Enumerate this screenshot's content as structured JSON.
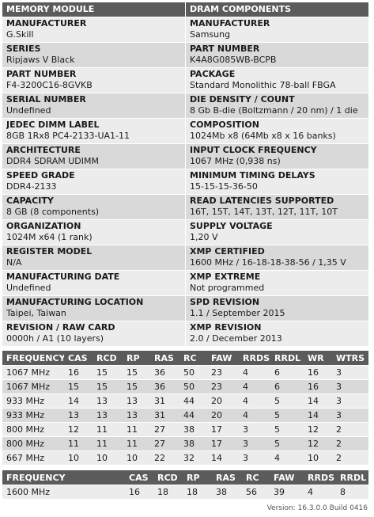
{
  "left_header": "MEMORY MODULE",
  "right_header": "DRAM COMPONENTS",
  "left": [
    {
      "label": "MANUFACTURER",
      "value": "G.Skill"
    },
    {
      "label": "SERIES",
      "value": "Ripjaws V Black"
    },
    {
      "label": "PART NUMBER",
      "value": "F4-3200C16-8GVKB"
    },
    {
      "label": "SERIAL NUMBER",
      "value": "Undefined"
    },
    {
      "label": "JEDEC DIMM LABEL",
      "value": "8GB 1Rx8 PC4-2133-UA1-11"
    },
    {
      "label": "ARCHITECTURE",
      "value": "DDR4 SDRAM UDIMM"
    },
    {
      "label": "SPEED GRADE",
      "value": "DDR4-2133"
    },
    {
      "label": "CAPACITY",
      "value": "8 GB (8 components)"
    },
    {
      "label": "ORGANIZATION",
      "value": "1024M x64 (1 rank)"
    },
    {
      "label": "REGISTER MODEL",
      "value": "N/A"
    },
    {
      "label": "MANUFACTURING DATE",
      "value": "Undefined"
    },
    {
      "label": "MANUFACTURING LOCATION",
      "value": "Taipei, Taiwan"
    },
    {
      "label": "REVISION / RAW CARD",
      "value": "0000h / A1 (10 layers)"
    }
  ],
  "right": [
    {
      "label": "MANUFACTURER",
      "value": "Samsung"
    },
    {
      "label": "PART NUMBER",
      "value": "K4A8G085WB-BCPB"
    },
    {
      "label": "PACKAGE",
      "value": "Standard Monolithic 78-ball FBGA"
    },
    {
      "label": "DIE DENSITY / COUNT",
      "value": "8 Gb B-die (Boltzmann / 20 nm) / 1 die"
    },
    {
      "label": "COMPOSITION",
      "value": "1024Mb x8 (64Mb x8 x 16 banks)"
    },
    {
      "label": "INPUT CLOCK FREQUENCY",
      "value": "1067 MHz (0,938 ns)"
    },
    {
      "label": "MINIMUM TIMING DELAYS",
      "value": "15-15-15-36-50"
    },
    {
      "label": "READ LATENCIES SUPPORTED",
      "value": "16T, 15T, 14T, 13T, 12T, 11T, 10T"
    },
    {
      "label": "SUPPLY VOLTAGE",
      "value": "1,20 V"
    },
    {
      "label": "XMP CERTIFIED",
      "value": "1600 MHz / 16-18-18-38-56 / 1,35 V"
    },
    {
      "label": "XMP EXTREME",
      "value": "Not programmed"
    },
    {
      "label": "SPD REVISION",
      "value": "1.1 / September 2015"
    },
    {
      "label": "XMP REVISION",
      "value": "2.0 / December 2013"
    }
  ],
  "jedec": {
    "headers": [
      "FREQUENCY",
      "CAS",
      "RCD",
      "RP",
      "RAS",
      "RC",
      "FAW",
      "RRDS",
      "RRDL",
      "WR",
      "WTRS"
    ],
    "rows": [
      [
        "1067 MHz",
        "16",
        "15",
        "15",
        "36",
        "50",
        "23",
        "4",
        "6",
        "16",
        "3"
      ],
      [
        "1067 MHz",
        "15",
        "15",
        "15",
        "36",
        "50",
        "23",
        "4",
        "6",
        "16",
        "3"
      ],
      [
        "933 MHz",
        "14",
        "13",
        "13",
        "31",
        "44",
        "20",
        "4",
        "5",
        "14",
        "3"
      ],
      [
        "933 MHz",
        "13",
        "13",
        "13",
        "31",
        "44",
        "20",
        "4",
        "5",
        "14",
        "3"
      ],
      [
        "800 MHz",
        "12",
        "11",
        "11",
        "27",
        "38",
        "17",
        "3",
        "5",
        "12",
        "2"
      ],
      [
        "800 MHz",
        "11",
        "11",
        "11",
        "27",
        "38",
        "17",
        "3",
        "5",
        "12",
        "2"
      ],
      [
        "667 MHz",
        "10",
        "10",
        "10",
        "22",
        "32",
        "14",
        "3",
        "4",
        "10",
        "2"
      ]
    ]
  },
  "xmp": {
    "headers": [
      "FREQUENCY",
      "CAS",
      "RCD",
      "RP",
      "RAS",
      "RC",
      "FAW",
      "RRDS",
      "RRDL"
    ],
    "rows": [
      [
        "1600 MHz",
        "16",
        "18",
        "18",
        "38",
        "56",
        "39",
        "4",
        "8"
      ]
    ]
  },
  "version": "Version: 16.3.0.0 Build 0416"
}
